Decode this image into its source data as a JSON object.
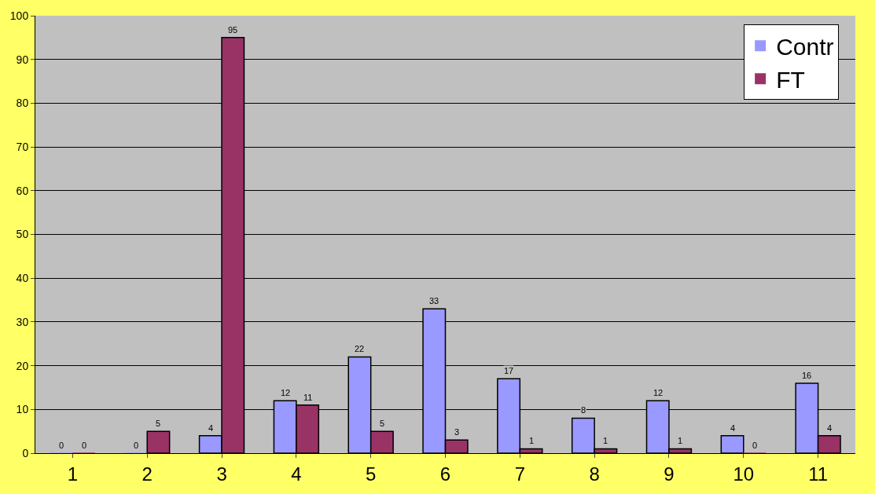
{
  "chart_data": {
    "type": "bar",
    "categories": [
      "1",
      "2",
      "3",
      "4",
      "5",
      "6",
      "7",
      "8",
      "9",
      "10",
      "11"
    ],
    "series": [
      {
        "name": "Contr",
        "color": "#9999ff",
        "values": [
          0,
          0,
          4,
          12,
          22,
          33,
          17,
          8,
          12,
          4,
          16
        ]
      },
      {
        "name": "FT",
        "color": "#993366",
        "values": [
          0,
          5,
          95,
          11,
          5,
          3,
          1,
          1,
          1,
          0,
          4
        ]
      }
    ],
    "ylim": [
      0,
      100
    ],
    "yticks": [
      0,
      10,
      20,
      30,
      40,
      50,
      60,
      70,
      80,
      90,
      100
    ],
    "grid": "y",
    "legend": "top right",
    "data_labels": true
  }
}
